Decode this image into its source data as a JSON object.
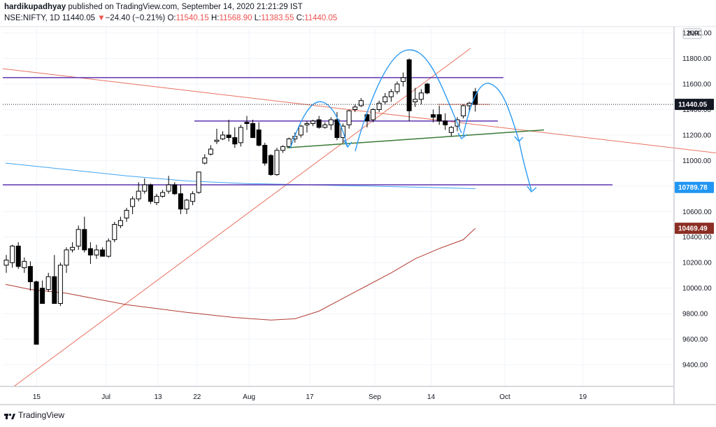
{
  "header": {
    "author": "hardikupadhyay",
    "published": "published on TradingView.com, September 14, 2020 21:21:29 IST",
    "symbol": "NSE:NIFTY, 1D",
    "last": "11440.05",
    "change_arrow": "▼",
    "change": "−24.40 (−0.21%)",
    "ohlc": {
      "o_label": "O:",
      "o": "11540.15",
      "h_label": "H:",
      "h": "11568.90",
      "l_label": "L:",
      "l": "11383.55",
      "c_label": "C:",
      "c": "11440.05"
    }
  },
  "footer": {
    "brand": "TradingView"
  },
  "currency": "INR",
  "colors": {
    "up_candle": "#ffffff",
    "down_candle": "#000000",
    "ma_blue": "#42a5f5",
    "ma_brown": "#b23c32",
    "trend_red": "#e8715f",
    "support_purple": "#5e35b1",
    "neckline_green": "#3a7a36",
    "drawing_blue": "#2b9af3",
    "last_price_tag": "#131722",
    "blue_tag": "#2196f3",
    "brown_tag": "#8b2e23"
  },
  "chart_data": {
    "type": "candlestick",
    "title": "",
    "price_axis": {
      "ticks": [
        "12000.00",
        "11800.00",
        "11600.00",
        "11400.00",
        "11200.00",
        "11000.00",
        "10800.00",
        "10600.00",
        "10400.00",
        "10200.00",
        "10000.00",
        "9800.00",
        "9600.00",
        "9400.00"
      ],
      "range": [
        9230,
        12050
      ],
      "tags": [
        {
          "label": "11440.05",
          "value": 11440.05,
          "kind": "last"
        },
        {
          "label": "10789.78",
          "value": 10789.78,
          "kind": "blue"
        },
        {
          "label": "10469.49",
          "value": 10469.49,
          "kind": "brown"
        }
      ]
    },
    "time_axis": {
      "ticks": [
        {
          "label": "15",
          "date": "2020-06-15"
        },
        {
          "label": "Jul",
          "date": "2020-07-01"
        },
        {
          "label": "13",
          "date": "2020-07-13"
        },
        {
          "label": "22",
          "date": "2020-07-22"
        },
        {
          "label": "Aug",
          "date": "2020-08-03"
        },
        {
          "label": "17",
          "date": "2020-08-17"
        },
        {
          "label": "Sep",
          "date": "2020-09-01"
        },
        {
          "label": "14",
          "date": "2020-09-14"
        },
        {
          "label": "Oct",
          "date": "2020-10-01"
        },
        {
          "label": "19",
          "date": "2020-10-19"
        }
      ]
    },
    "ohlc": [
      [
        10180,
        10260,
        10120,
        10220
      ],
      [
        10200,
        10340,
        10160,
        10330
      ],
      [
        10330,
        10360,
        10150,
        10170
      ],
      [
        10160,
        10240,
        10120,
        10210
      ],
      [
        10170,
        10210,
        9980,
        10050
      ],
      [
        10050,
        10060,
        9560,
        9560
      ],
      [
        10000,
        10060,
        9880,
        9880
      ],
      [
        9990,
        10120,
        9970,
        10090
      ],
      [
        10090,
        10260,
        9880,
        9880
      ],
      [
        9880,
        10200,
        9860,
        10180
      ],
      [
        10180,
        10320,
        10120,
        10300
      ],
      [
        10300,
        10360,
        10280,
        10320
      ],
      [
        10330,
        10490,
        10300,
        10460
      ],
      [
        10460,
        10560,
        10280,
        10300
      ],
      [
        10310,
        10360,
        10190,
        10260
      ],
      [
        10260,
        10340,
        10230,
        10300
      ],
      [
        10300,
        10320,
        10250,
        10250
      ],
      [
        10250,
        10390,
        10240,
        10370
      ],
      [
        10380,
        10520,
        10360,
        10500
      ],
      [
        10490,
        10560,
        10470,
        10530
      ],
      [
        10550,
        10630,
        10520,
        10610
      ],
      [
        10640,
        10720,
        10580,
        10700
      ],
      [
        10700,
        10830,
        10680,
        10760
      ],
      [
        10760,
        10860,
        10740,
        10810
      ],
      [
        10810,
        10820,
        10660,
        10680
      ],
      [
        10670,
        10740,
        10650,
        10720
      ],
      [
        10720,
        10770,
        10710,
        10750
      ],
      [
        10760,
        10880,
        10740,
        10810
      ],
      [
        10810,
        10830,
        10730,
        10740
      ],
      [
        10740,
        10810,
        10580,
        10620
      ],
      [
        10620,
        10700,
        10580,
        10690
      ],
      [
        10680,
        10760,
        10650,
        10740
      ],
      [
        10750,
        10910,
        10740,
        10910
      ],
      [
        10980,
        11050,
        10970,
        11020
      ],
      [
        11050,
        11120,
        11040,
        11090
      ],
      [
        11150,
        11250,
        11130,
        11160
      ],
      [
        11170,
        11230,
        11160,
        11200
      ],
      [
        11200,
        11320,
        11150,
        11180
      ],
      [
        11180,
        11260,
        11100,
        11130
      ],
      [
        11140,
        11280,
        11110,
        11260
      ],
      [
        11300,
        11350,
        11240,
        11290
      ],
      [
        11290,
        11320,
        11180,
        11180
      ],
      [
        11240,
        11300,
        11110,
        11120
      ],
      [
        11120,
        11140,
        10960,
        10980
      ],
      [
        11040,
        11050,
        10880,
        10890
      ],
      [
        10890,
        11100,
        10880,
        11080
      ],
      [
        11080,
        11120,
        11060,
        11110
      ],
      [
        11110,
        11180,
        11100,
        11170
      ],
      [
        11170,
        11220,
        11140,
        11190
      ],
      [
        11200,
        11280,
        11180,
        11270
      ],
      [
        11280,
        11310,
        11220,
        11290
      ],
      [
        11290,
        11320,
        11270,
        11310
      ],
      [
        11320,
        11350,
        11250,
        11260
      ],
      [
        11260,
        11300,
        11250,
        11280
      ],
      [
        11280,
        11340,
        11240,
        11320
      ],
      [
        11320,
        11380,
        11160,
        11180
      ],
      [
        11180,
        11290,
        11140,
        11270
      ],
      [
        11280,
        11400,
        11250,
        11390
      ],
      [
        11400,
        11440,
        11380,
        11420
      ],
      [
        11430,
        11490,
        11420,
        11470
      ],
      [
        11360,
        11380,
        11260,
        11310
      ],
      [
        11320,
        11410,
        11300,
        11400
      ],
      [
        11400,
        11470,
        11380,
        11450
      ],
      [
        11460,
        11530,
        11440,
        11500
      ],
      [
        11500,
        11560,
        11460,
        11540
      ],
      [
        11540,
        11620,
        11520,
        11600
      ],
      [
        11620,
        11690,
        11580,
        11650
      ],
      [
        11790,
        11800,
        11310,
        11390
      ],
      [
        11460,
        11570,
        11420,
        11480
      ],
      [
        11480,
        11560,
        11440,
        11530
      ],
      [
        11600,
        11610,
        11520,
        11530
      ],
      [
        11360,
        11400,
        11300,
        11340
      ],
      [
        11360,
        11430,
        11280,
        11310
      ],
      [
        11310,
        11370,
        11240,
        11280
      ],
      [
        11220,
        11270,
        11190,
        11260
      ],
      [
        11270,
        11340,
        11230,
        11320
      ],
      [
        11350,
        11440,
        11330,
        11430
      ],
      [
        11430,
        11460,
        11380,
        11450
      ],
      [
        11540,
        11569,
        11384,
        11440
      ]
    ],
    "overlays": {
      "ma_blue": {
        "name": "",
        "last": 10789.78
      },
      "ma_brown": {
        "name": "",
        "last": 10469.49
      },
      "horizontal_levels": [
        11650,
        11310,
        10810
      ],
      "neckline": {
        "from": 11100,
        "to": 11240
      },
      "projection_target": 10810
    },
    "grid": true,
    "legend": "none"
  }
}
